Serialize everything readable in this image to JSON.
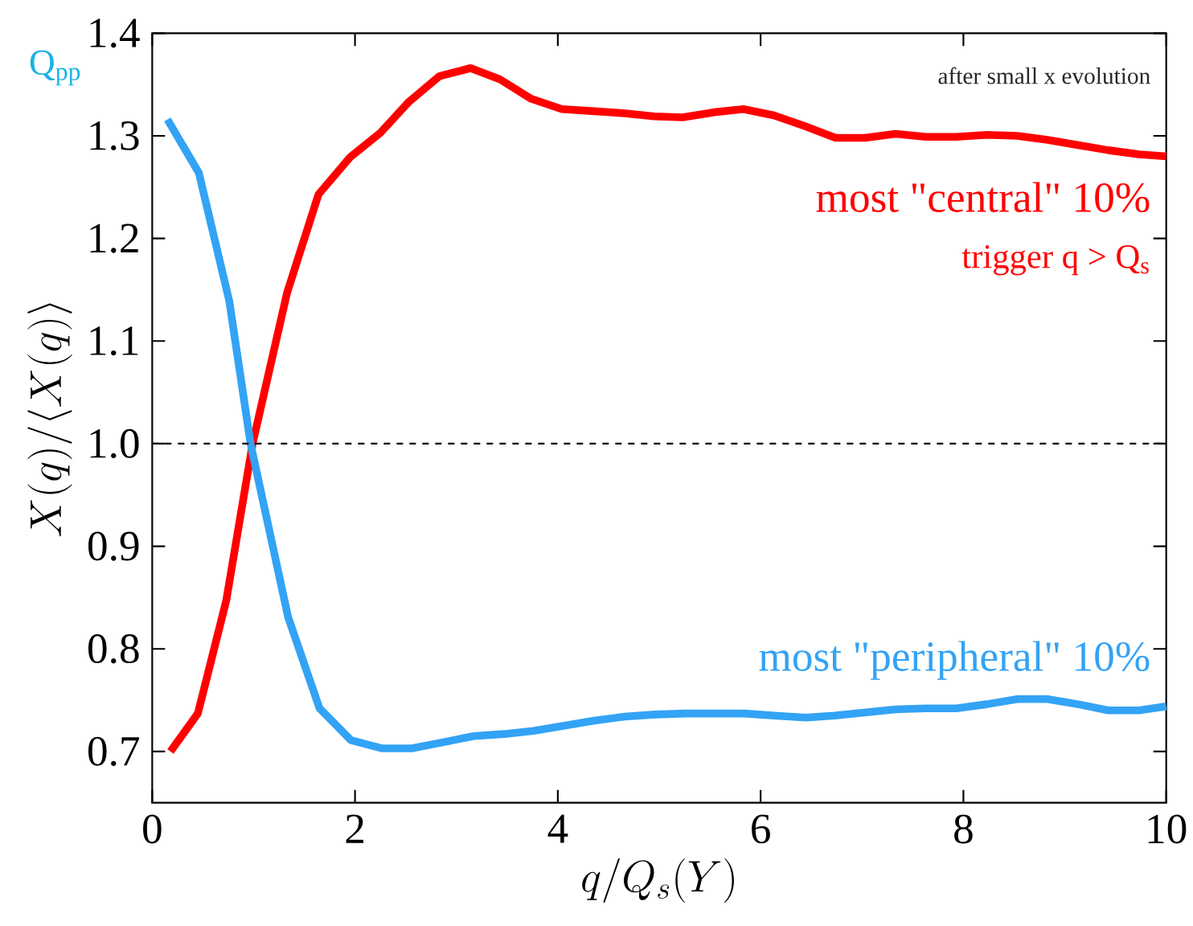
{
  "chart_data": {
    "type": "line",
    "xlabel": "q/Q_s(Y)",
    "ylabel": "X(q)/\\langle X(q)\\rangle",
    "xlim": [
      0,
      10
    ],
    "ylim": [
      0.65,
      1.4
    ],
    "xticks": [
      0,
      2,
      4,
      6,
      8,
      10
    ],
    "yticks": [
      0.7,
      0.8,
      0.9,
      {
        "value": 1.0,
        "label": "1.0"
      },
      1.1,
      1.2,
      1.3,
      1.4
    ],
    "grid": false,
    "legend": false,
    "marker": "none",
    "line_style": "solid",
    "ref_lines": [
      {
        "axis": "y",
        "value": 1.0,
        "color": "#000000",
        "line_style": "dashed"
      }
    ],
    "annotations": [
      "Q$_{pp}$",
      "after small x evolution",
      "trigger q > Q$_{s}$"
    ],
    "series": [
      {
        "name": "most \"central\" 10%",
        "color": "#ff0000",
        "x": [
          0.18,
          0.45,
          0.73,
          0.99,
          1.33,
          1.64,
          1.95,
          2.25,
          2.53,
          2.83,
          3.14,
          3.43,
          3.74,
          4.04,
          4.36,
          4.66,
          4.95,
          5.23,
          5.54,
          5.83,
          6.13,
          6.45,
          6.74,
          7.03,
          7.33,
          7.63,
          7.93,
          8.23,
          8.53,
          8.83,
          9.13,
          9.43,
          9.73,
          10.0
        ],
        "values": [
          0.7,
          0.737,
          0.847,
          1.0,
          1.147,
          1.243,
          1.279,
          1.303,
          1.333,
          1.358,
          1.366,
          1.355,
          1.336,
          1.326,
          1.324,
          1.322,
          1.319,
          1.318,
          1.323,
          1.326,
          1.32,
          1.309,
          1.298,
          1.298,
          1.302,
          1.299,
          1.299,
          1.301,
          1.3,
          1.296,
          1.291,
          1.286,
          1.282,
          1.28
        ]
      },
      {
        "name": "most \"peripheral\" 10%",
        "color": "#33a3f5",
        "x": [
          0.15,
          0.46,
          0.76,
          0.97,
          1.34,
          1.65,
          1.96,
          2.27,
          2.56,
          2.87,
          3.17,
          3.47,
          3.76,
          4.06,
          4.36,
          4.66,
          4.96,
          5.26,
          5.56,
          5.84,
          6.13,
          6.45,
          6.73,
          7.03,
          7.33,
          7.63,
          7.93,
          8.23,
          8.53,
          8.83,
          9.13,
          9.43,
          9.73,
          10.0
        ],
        "values": [
          1.316,
          1.264,
          1.139,
          1.0,
          0.831,
          0.742,
          0.711,
          0.703,
          0.703,
          0.709,
          0.715,
          0.717,
          0.72,
          0.725,
          0.73,
          0.734,
          0.736,
          0.737,
          0.737,
          0.737,
          0.735,
          0.733,
          0.735,
          0.738,
          0.741,
          0.742,
          0.742,
          0.746,
          0.751,
          0.751,
          0.746,
          0.74,
          0.74,
          0.744
        ]
      }
    ]
  }
}
